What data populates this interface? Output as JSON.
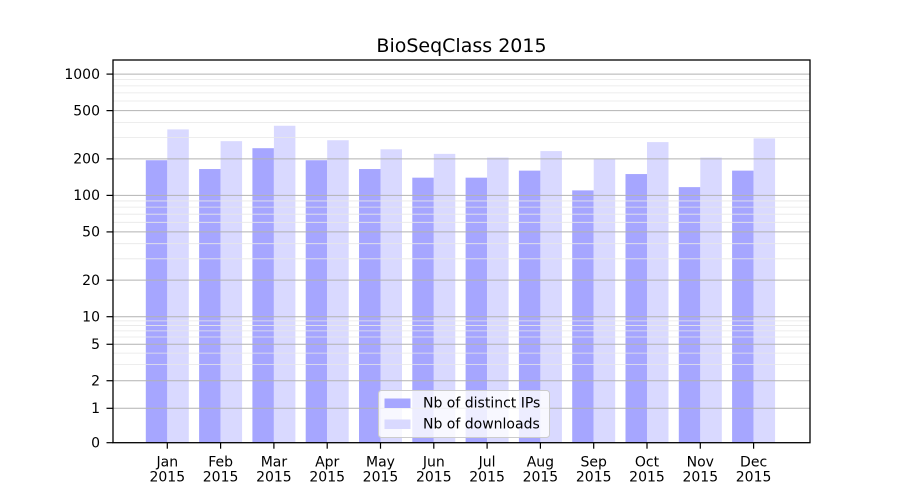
{
  "title": "BioSeqClass 2015",
  "chart_data": {
    "type": "bar",
    "title": "BioSeqClass 2015",
    "xlabel": "",
    "ylabel": "",
    "grid": true,
    "scale": "log-like (0,1,2,5,10,20,50,100,200,500,1000)",
    "legend_position": "lower center",
    "categories": [
      {
        "line1": "Jan",
        "line2": "2015"
      },
      {
        "line1": "Feb",
        "line2": "2015"
      },
      {
        "line1": "Mar",
        "line2": "2015"
      },
      {
        "line1": "Apr",
        "line2": "2015"
      },
      {
        "line1": "May",
        "line2": "2015"
      },
      {
        "line1": "Jun",
        "line2": "2015"
      },
      {
        "line1": "Jul",
        "line2": "2015"
      },
      {
        "line1": "Aug",
        "line2": "2015"
      },
      {
        "line1": "Sep",
        "line2": "2015"
      },
      {
        "line1": "Oct",
        "line2": "2015"
      },
      {
        "line1": "Nov",
        "line2": "2015"
      },
      {
        "line1": "Dec",
        "line2": "2015"
      }
    ],
    "series": [
      {
        "name": "Nb of distinct IPs",
        "color": "#a6a6ff",
        "values": [
          195,
          165,
          245,
          195,
          165,
          140,
          140,
          160,
          110,
          150,
          117,
          160
        ]
      },
      {
        "name": "Nb of downloads",
        "color": "#d9d9ff",
        "values": [
          350,
          280,
          375,
          285,
          240,
          220,
          205,
          232,
          200,
          275,
          205,
          295
        ]
      }
    ],
    "y_ticks": [
      0,
      1,
      2,
      5,
      10,
      20,
      50,
      100,
      200,
      500,
      1000
    ],
    "y_minor_ticks": [
      3,
      4,
      6,
      7,
      8,
      9,
      30,
      40,
      60,
      70,
      80,
      90,
      300,
      400,
      600,
      700,
      800,
      900
    ],
    "ylim": [
      0,
      1000
    ]
  },
  "colors": {
    "distinct_ips_bar": "#a6a6ff",
    "downloads_bar": "#d9d9ff",
    "major_gridline": "#b2b2b2",
    "minor_gridline": "#e7e7e7",
    "axis": "#000000"
  }
}
